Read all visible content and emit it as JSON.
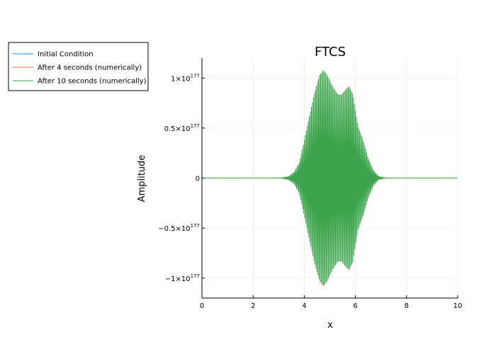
{
  "chart_data": {
    "type": "line",
    "title": "FTCS",
    "xlabel": "x",
    "ylabel": "Amplitude",
    "xlim": [
      0,
      10
    ],
    "ylim": [
      -1.2e+177,
      1.2e+177
    ],
    "xticks": [
      0,
      2,
      4,
      6,
      8,
      10
    ],
    "xtick_labels": [
      "0",
      "2",
      "4",
      "6",
      "8",
      "10"
    ],
    "yticks": [
      {
        "value": 1e+177,
        "mantissa": "1×10",
        "exponent": "177"
      },
      {
        "value": 5e+176,
        "mantissa": "0.5×10",
        "exponent": "177"
      },
      {
        "value": 0,
        "mantissa": "0",
        "exponent": ""
      },
      {
        "value": -5e+176,
        "mantissa": "−0.5×10",
        "exponent": "177"
      },
      {
        "value": -1e+177,
        "mantissa": "−1×10",
        "exponent": "177"
      }
    ],
    "grid": true,
    "legend_position": "outside-top-left",
    "series": [
      {
        "name": "Initial Condition",
        "color": "#009AFA",
        "style": "line",
        "x": [
          0,
          10
        ],
        "y": [
          0,
          0
        ]
      },
      {
        "name": "After 4 seconds (numerically)",
        "color": "#E26F46",
        "style": "line",
        "x": [
          0,
          10
        ],
        "y": [
          0,
          0
        ]
      },
      {
        "name": "After 10 seconds (numerically)",
        "color": "#3DA44D",
        "style": "oscillating-envelope",
        "oscillation_period": 0.04,
        "envelope_x": [
          0,
          3.0,
          3.2,
          3.4,
          3.6,
          3.8,
          4.0,
          4.2,
          4.4,
          4.6,
          4.75,
          4.9,
          5.1,
          5.3,
          5.45,
          5.6,
          5.75,
          5.9,
          6.1,
          6.3,
          6.5,
          6.7,
          6.9,
          7.1,
          7.3,
          10
        ],
        "envelope_y": [
          0,
          0,
          5e+174,
          2e+175,
          6e+175,
          1.5e+176,
          3.8e+176,
          6.2e+176,
          8.5e+176,
          1.03e+177,
          1.08e+177,
          1.03e+177,
          9.2e+176,
          8.4e+176,
          8.3e+176,
          8.8e+176,
          9.2e+176,
          8.4e+176,
          5.2e+176,
          3.8e+176,
          2e+176,
          8e+175,
          2e+175,
          4e+174,
          0,
          0
        ]
      }
    ]
  }
}
